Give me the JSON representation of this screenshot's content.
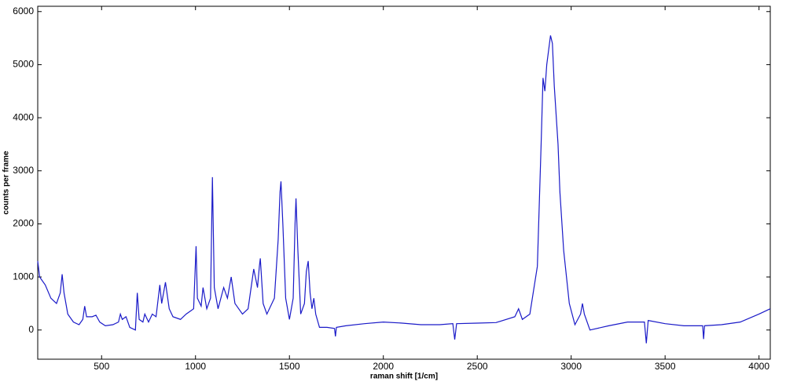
{
  "chart_data": {
    "type": "line",
    "x_label": "raman shift [1/cm]",
    "y_label": "counts per frame",
    "x": [
      160,
      170,
      200,
      230,
      260,
      280,
      290,
      300,
      320,
      350,
      380,
      400,
      410,
      420,
      450,
      470,
      490,
      520,
      560,
      590,
      600,
      610,
      630,
      650,
      680,
      690,
      700,
      720,
      730,
      750,
      770,
      790,
      810,
      820,
      840,
      860,
      880,
      920,
      950,
      970,
      990,
      1003,
      1010,
      1030,
      1040,
      1060,
      1080,
      1090,
      1100,
      1120,
      1150,
      1170,
      1190,
      1210,
      1250,
      1280,
      1300,
      1310,
      1330,
      1340,
      1345,
      1360,
      1380,
      1420,
      1440,
      1450,
      1455,
      1465,
      1480,
      1500,
      1520,
      1530,
      1535,
      1545,
      1560,
      1580,
      1590,
      1600,
      1610,
      1620,
      1630,
      1640,
      1660,
      1700,
      1740,
      1745,
      1750,
      1800,
      1900,
      2000,
      2100,
      2200,
      2300,
      2370,
      2380,
      2390,
      2500,
      2600,
      2700,
      2720,
      2740,
      2780,
      2820,
      2840,
      2850,
      2860,
      2870,
      2890,
      2900,
      2910,
      2930,
      2940,
      2960,
      2990,
      3020,
      3050,
      3060,
      3070,
      3100,
      3200,
      3300,
      3390,
      3400,
      3410,
      3500,
      3600,
      3700,
      3705,
      3710,
      3800,
      3900,
      4000,
      4060
    ],
    "values": [
      1300,
      1000,
      850,
      600,
      500,
      700,
      1050,
      700,
      300,
      150,
      100,
      200,
      450,
      250,
      250,
      280,
      150,
      80,
      100,
      150,
      300,
      200,
      250,
      50,
      0,
      700,
      200,
      150,
      300,
      150,
      300,
      250,
      850,
      500,
      900,
      400,
      250,
      200,
      300,
      350,
      400,
      1580,
      600,
      450,
      800,
      400,
      600,
      2880,
      800,
      400,
      800,
      600,
      1000,
      500,
      300,
      400,
      900,
      1150,
      800,
      1200,
      1350,
      500,
      300,
      600,
      1700,
      2600,
      2800,
      2000,
      600,
      200,
      600,
      2000,
      2480,
      1500,
      300,
      500,
      1100,
      1300,
      700,
      400,
      600,
      300,
      50,
      50,
      30,
      -120,
      50,
      80,
      120,
      150,
      130,
      100,
      100,
      120,
      -180,
      120,
      130,
      140,
      250,
      400,
      200,
      300,
      1200,
      3500,
      4750,
      4500,
      5000,
      5550,
      5400,
      4600,
      3500,
      2600,
      1500,
      500,
      100,
      300,
      500,
      300,
      0,
      80,
      150,
      150,
      -250,
      180,
      120,
      80,
      80,
      -170,
      80,
      100,
      150,
      300,
      400
    ],
    "color": "#1a1ac8",
    "xlim": [
      160,
      4060
    ],
    "ylim": [
      -550,
      6100
    ],
    "xticks": [
      500,
      1000,
      1500,
      2000,
      2500,
      3000,
      3500,
      4000
    ],
    "yticks": [
      0,
      1000,
      2000,
      3000,
      4000,
      5000,
      6000
    ],
    "grid": false
  }
}
